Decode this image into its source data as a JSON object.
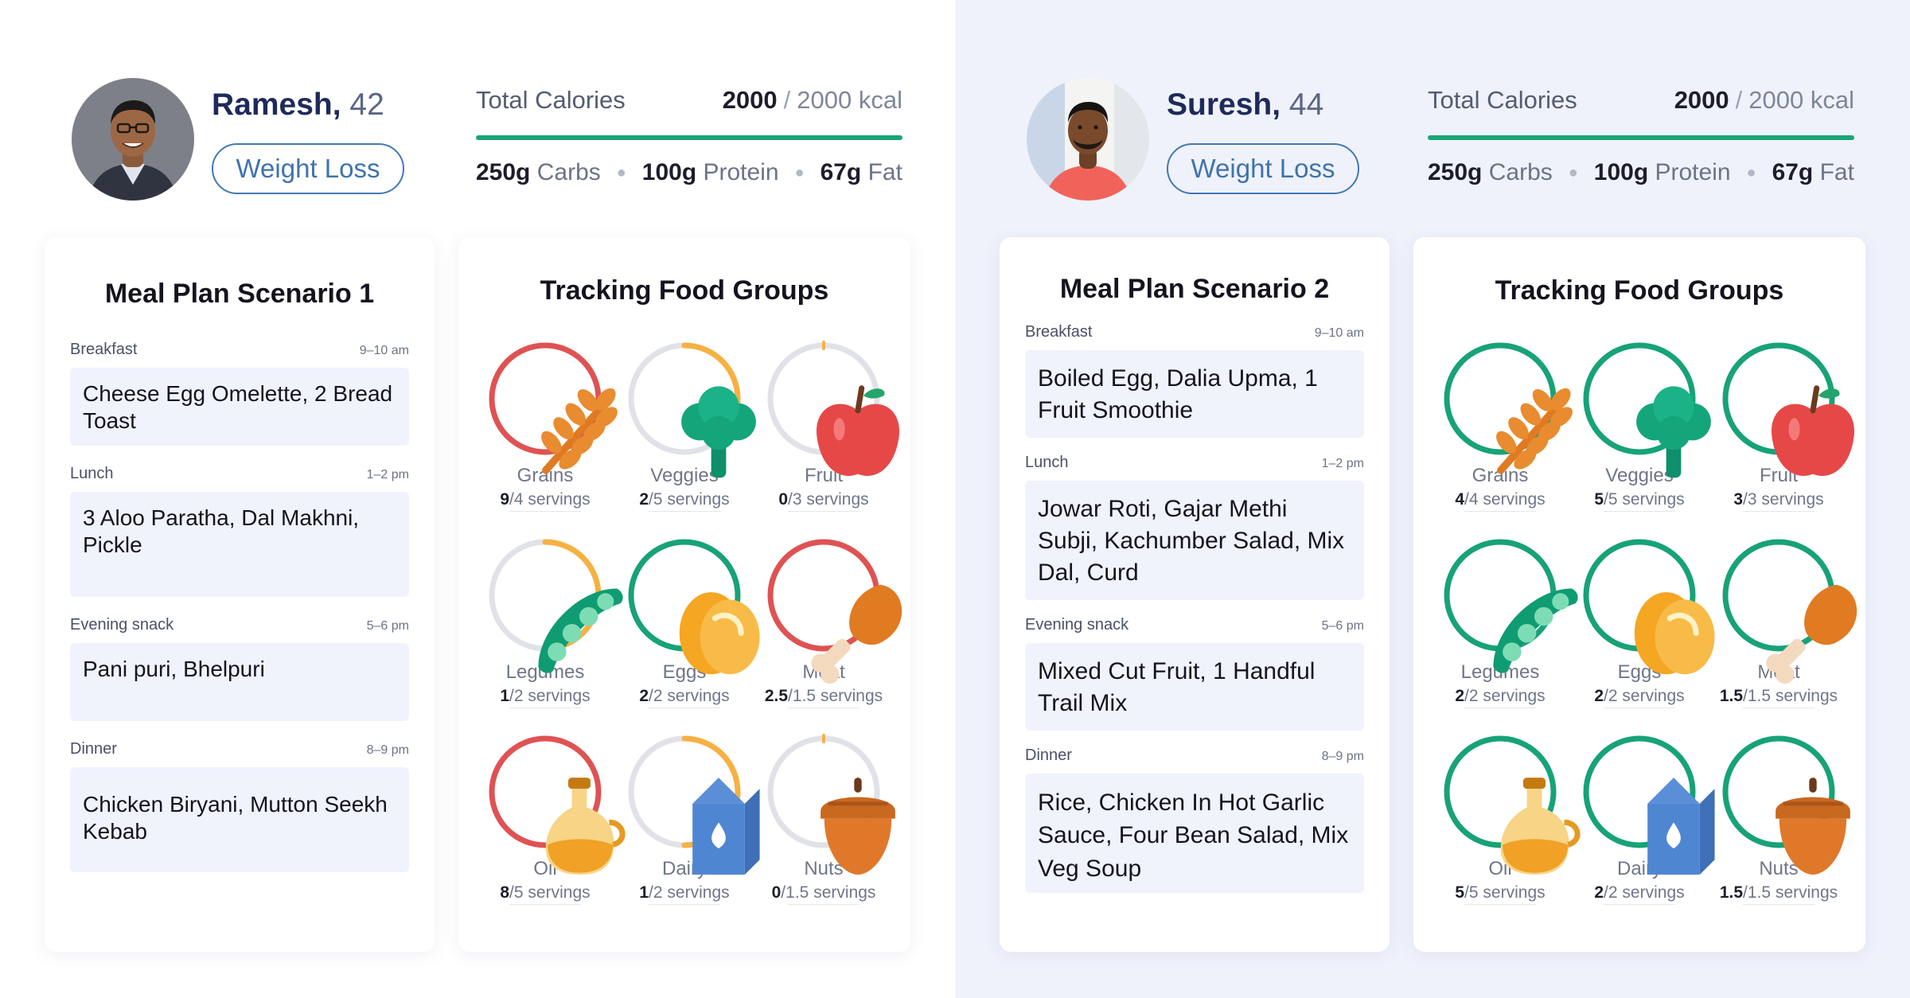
{
  "colors": {
    "red": "#df5253",
    "green": "#17a277",
    "orange": "#f7b142",
    "track": "#e1e2e8",
    "bar": "#1aa574"
  },
  "scenarios": [
    {
      "person": {
        "name": "Ramesh",
        "age": "42",
        "goal": "Weight Loss"
      },
      "calories": {
        "label": "Total Calories",
        "current": "2000",
        "target": "2000 kcal",
        "separator": "/"
      },
      "macros": [
        {
          "amount": "250g",
          "name": "Carbs"
        },
        {
          "amount": "100g",
          "name": "Protein"
        },
        {
          "amount": "67g",
          "name": "Fat"
        }
      ],
      "meal_plan": {
        "title": "Meal Plan Scenario 1",
        "meals": [
          {
            "name": "Breakfast",
            "time": "9–10 am",
            "food": "Cheese Egg Omelette, 2 Bread Toast"
          },
          {
            "name": "Lunch",
            "time": "1–2 pm",
            "food": "3 Aloo Paratha, Dal Makhni, Pickle"
          },
          {
            "name": "Evening snack",
            "time": "5–6 pm",
            "food": "Pani puri, Bhelpuri"
          },
          {
            "name": "Dinner",
            "time": "8–9 pm",
            "food": "Chicken Biryani, Mutton Seekh Kebab"
          }
        ]
      },
      "tracking": {
        "title": "Tracking Food Groups",
        "groups": [
          {
            "name": "Grains",
            "icon": "wheat-icon",
            "current": "9",
            "target": "4",
            "unit": "servings",
            "status": "over",
            "fill": 1.0
          },
          {
            "name": "Veggies",
            "icon": "broccoli-icon",
            "current": "2",
            "target": "5",
            "unit": "servings",
            "status": "partial",
            "fill": 0.4
          },
          {
            "name": "Fruit",
            "icon": "apple-icon",
            "current": "0",
            "target": "3",
            "unit": "servings",
            "status": "partial",
            "fill": 0.0
          },
          {
            "name": "Legumes",
            "icon": "pea-pod-icon",
            "current": "1",
            "target": "2",
            "unit": "servings",
            "status": "partial",
            "fill": 0.5
          },
          {
            "name": "Eggs",
            "icon": "egg-icon",
            "current": "2",
            "target": "2",
            "unit": "servings",
            "status": "met",
            "fill": 1.0
          },
          {
            "name": "Meat",
            "icon": "drumstick-icon",
            "current": "2.5",
            "target": "1.5",
            "unit": "servings",
            "status": "over",
            "fill": 1.0
          },
          {
            "name": "Oil",
            "icon": "oil-bottle-icon",
            "current": "8",
            "target": "5",
            "unit": "servings",
            "status": "over",
            "fill": 1.0
          },
          {
            "name": "Dairy",
            "icon": "milk-carton-icon",
            "current": "1",
            "target": "2",
            "unit": "servings",
            "status": "partial",
            "fill": 0.5
          },
          {
            "name": "Nuts",
            "icon": "acorn-icon",
            "current": "0",
            "target": "1.5",
            "unit": "servings",
            "status": "partial",
            "fill": 0.0
          }
        ]
      }
    },
    {
      "person": {
        "name": "Suresh",
        "age": "44",
        "goal": "Weight Loss"
      },
      "calories": {
        "label": "Total Calories",
        "current": "2000",
        "target": "2000 kcal",
        "separator": "/"
      },
      "macros": [
        {
          "amount": "250g",
          "name": "Carbs"
        },
        {
          "amount": "100g",
          "name": "Protein"
        },
        {
          "amount": "67g",
          "name": "Fat"
        }
      ],
      "meal_plan": {
        "title": "Meal Plan Scenario 2",
        "meals": [
          {
            "name": "Breakfast",
            "time": "9–10 am",
            "food": "Boiled Egg, Dalia Upma, 1 Fruit Smoothie"
          },
          {
            "name": "Lunch",
            "time": "1–2 pm",
            "food": "Jowar Roti, Gajar Methi Subji, Kachumber Salad, Mix Dal, Curd"
          },
          {
            "name": "Evening snack",
            "time": "5–6 pm",
            "food": "Mixed Cut Fruit, 1 Handful Trail Mix"
          },
          {
            "name": "Dinner",
            "time": "8–9 pm",
            "food": "Rice, Chicken In Hot Garlic Sauce, Four Bean Salad, Mix Veg Soup"
          }
        ]
      },
      "tracking": {
        "title": "Tracking Food Groups",
        "groups": [
          {
            "name": "Grains",
            "icon": "wheat-icon",
            "current": "4",
            "target": "4",
            "unit": "servings",
            "status": "met",
            "fill": 1.0
          },
          {
            "name": "Veggies",
            "icon": "broccoli-icon",
            "current": "5",
            "target": "5",
            "unit": "servings",
            "status": "met",
            "fill": 1.0
          },
          {
            "name": "Fruit",
            "icon": "apple-icon",
            "current": "3",
            "target": "3",
            "unit": "servings",
            "status": "met",
            "fill": 1.0
          },
          {
            "name": "Legumes",
            "icon": "pea-pod-icon",
            "current": "2",
            "target": "2",
            "unit": "servings",
            "status": "met",
            "fill": 1.0
          },
          {
            "name": "Eggs",
            "icon": "egg-icon",
            "current": "2",
            "target": "2",
            "unit": "servings",
            "status": "met",
            "fill": 1.0
          },
          {
            "name": "Meat",
            "icon": "drumstick-icon",
            "current": "1.5",
            "target": "1.5",
            "unit": "servings",
            "status": "met",
            "fill": 1.0
          },
          {
            "name": "Oil",
            "icon": "oil-bottle-icon",
            "current": "5",
            "target": "5",
            "unit": "servings",
            "status": "met",
            "fill": 1.0
          },
          {
            "name": "Dairy",
            "icon": "milk-carton-icon",
            "current": "2",
            "target": "2",
            "unit": "servings",
            "status": "met",
            "fill": 1.0
          },
          {
            "name": "Nuts",
            "icon": "acorn-icon",
            "current": "1.5",
            "target": "1.5",
            "unit": "servings",
            "status": "met",
            "fill": 1.0
          }
        ]
      }
    }
  ]
}
